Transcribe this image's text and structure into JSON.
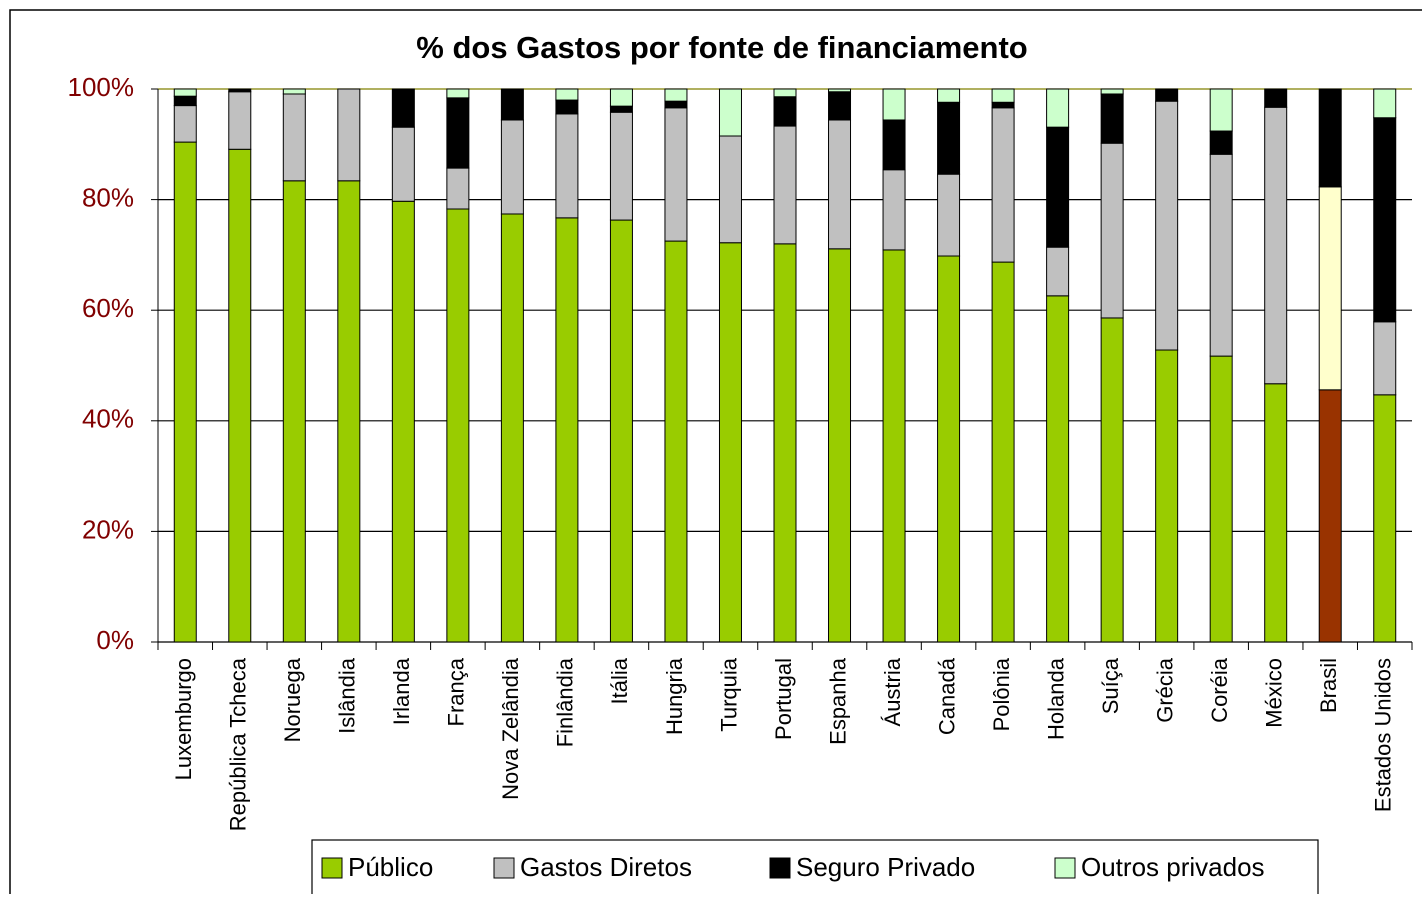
{
  "chart_data": {
    "type": "stacked_bar",
    "title": "% dos Gastos por fonte de financiamento",
    "categories": [
      "Luxemburgo",
      "República Tcheca",
      "Noruega",
      "Islândia",
      "Irlanda",
      "França",
      "Nova Zelândia",
      "Finlândia",
      "Itália",
      "Hungria",
      "Turquia",
      "Portugal",
      "Espanha",
      "Áustria",
      "Canadá",
      "Polônia",
      "Holanda",
      "Suíça",
      "Grécia",
      "Coréia",
      "México",
      "Brasil",
      "Estados Unidos"
    ],
    "series": [
      {
        "name": "Público",
        "color": "#99cc00",
        "highlight_color": "#993300",
        "values": [
          90.4,
          89.1,
          83.4,
          83.4,
          79.7,
          78.3,
          77.4,
          76.7,
          76.3,
          72.5,
          72.2,
          72.0,
          71.1,
          70.9,
          69.8,
          68.7,
          62.6,
          58.6,
          52.8,
          51.7,
          46.7,
          45.6,
          44.7
        ]
      },
      {
        "name": "Gastos Diretos",
        "color": "#c0c0c0",
        "highlight_color": "#ffffcc",
        "values": [
          6.6,
          10.4,
          15.7,
          16.6,
          13.4,
          7.4,
          17.0,
          18.8,
          19.5,
          24.1,
          19.3,
          21.3,
          23.3,
          14.5,
          14.8,
          27.9,
          8.8,
          31.6,
          45.0,
          36.5,
          50.0,
          36.7,
          13.2
        ]
      },
      {
        "name": "Seguro Privado",
        "color": "#000000",
        "highlight_color": "#000000",
        "values": [
          1.7,
          0.5,
          0,
          0,
          6.9,
          12.7,
          5.6,
          2.5,
          1.1,
          1.2,
          0,
          5.3,
          5.1,
          9.0,
          13.0,
          1.0,
          21.7,
          8.9,
          2.2,
          4.2,
          3.3,
          17.7,
          36.9
        ]
      },
      {
        "name": "Outros privados",
        "color": "#ccffcc",
        "highlight_color": "#ccffcc",
        "values": [
          1.3,
          0,
          0.9,
          0,
          0,
          1.6,
          0,
          2.0,
          3.1,
          2.2,
          8.5,
          1.4,
          0.5,
          5.6,
          2.4,
          2.4,
          6.9,
          0.9,
          0,
          7.6,
          0,
          0,
          5.2
        ]
      }
    ],
    "highlight": "Brasil",
    "ylim": [
      0,
      100
    ],
    "yticks": [
      {
        "value": 0,
        "label": "0%"
      },
      {
        "value": 20,
        "label": "20%"
      },
      {
        "value": 40,
        "label": "40%"
      },
      {
        "value": 60,
        "label": "60%"
      },
      {
        "value": 80,
        "label": "80%"
      },
      {
        "value": 100,
        "label": "100%"
      }
    ],
    "grid": true
  }
}
